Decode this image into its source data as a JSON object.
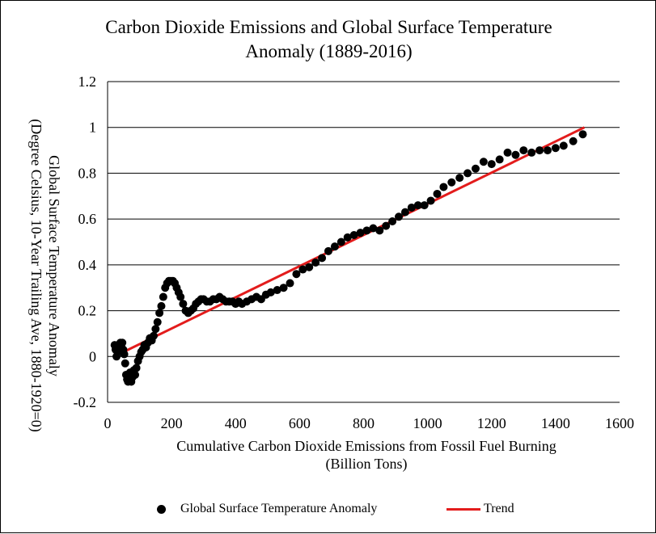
{
  "title_lines": [
    "Carbon Dioxide Emissions and Global Surface Temperature",
    "Anomaly (1889-2016)"
  ],
  "colors": {
    "points": "#000000",
    "trend": "#e31c1c",
    "grid": "#000000"
  },
  "chart_data": {
    "type": "scatter",
    "title": "Carbon Dioxide Emissions and Global Surface Temperature Anomaly (1889-2016)",
    "xlabel_lines": [
      "Cumulative Carbon Dioxide Emissions from Fossil Fuel Burning",
      "(Billion Tons)"
    ],
    "ylabel_lines": [
      "Global Surface Temperature Anomaly",
      "(Degree Celsius, 10-Year Trailing Ave, 1880-1920=0)"
    ],
    "xlim": [
      0,
      1600
    ],
    "ylim": [
      -0.2,
      1.2
    ],
    "xticks": [
      "0",
      "200",
      "400",
      "600",
      "800",
      "1000",
      "1200",
      "1400",
      "1600"
    ],
    "yticks": [
      "-0.2",
      "0",
      "0.2",
      "0.4",
      "0.6",
      "0.8",
      "1",
      "1.2"
    ],
    "grid": "horizontal major gridlines",
    "legend_position": "bottom",
    "series": [
      {
        "name": "Global Surface Temperature Anomaly",
        "kind": "scatter",
        "x": [
          22,
          25,
          28,
          31,
          34,
          37,
          40,
          43,
          46,
          49,
          52,
          55,
          58,
          61,
          64,
          67,
          70,
          74,
          78,
          82,
          86,
          90,
          95,
          100,
          105,
          110,
          115,
          120,
          126,
          132,
          138,
          144,
          150,
          156,
          162,
          168,
          174,
          180,
          186,
          192,
          198,
          204,
          210,
          216,
          222,
          228,
          236,
          244,
          252,
          260,
          268,
          276,
          284,
          292,
          300,
          310,
          320,
          330,
          340,
          350,
          360,
          370,
          380,
          390,
          400,
          410,
          420,
          435,
          450,
          465,
          480,
          495,
          510,
          530,
          550,
          570,
          590,
          610,
          630,
          650,
          670,
          690,
          710,
          730,
          750,
          770,
          790,
          810,
          830,
          850,
          870,
          890,
          910,
          930,
          950,
          970,
          990,
          1010,
          1030,
          1050,
          1075,
          1100,
          1125,
          1150,
          1175,
          1200,
          1225,
          1250,
          1275,
          1300,
          1325,
          1350,
          1375,
          1400,
          1425,
          1455,
          1485
        ],
        "y": [
          0.05,
          0.03,
          0.0,
          0.02,
          0.04,
          0.03,
          0.06,
          0.05,
          0.06,
          0.03,
          0.01,
          -0.03,
          -0.08,
          -0.1,
          -0.11,
          -0.09,
          -0.07,
          -0.11,
          -0.09,
          -0.06,
          -0.08,
          -0.05,
          -0.02,
          0.0,
          0.02,
          0.03,
          0.05,
          0.04,
          0.06,
          0.08,
          0.07,
          0.09,
          0.12,
          0.15,
          0.19,
          0.22,
          0.26,
          0.3,
          0.32,
          0.33,
          0.33,
          0.33,
          0.32,
          0.3,
          0.28,
          0.26,
          0.23,
          0.2,
          0.19,
          0.2,
          0.21,
          0.23,
          0.24,
          0.25,
          0.25,
          0.24,
          0.24,
          0.25,
          0.25,
          0.26,
          0.25,
          0.24,
          0.24,
          0.24,
          0.23,
          0.24,
          0.23,
          0.24,
          0.25,
          0.26,
          0.25,
          0.27,
          0.28,
          0.29,
          0.3,
          0.32,
          0.36,
          0.38,
          0.39,
          0.41,
          0.43,
          0.46,
          0.48,
          0.5,
          0.52,
          0.53,
          0.54,
          0.55,
          0.56,
          0.55,
          0.57,
          0.59,
          0.61,
          0.63,
          0.65,
          0.66,
          0.66,
          0.68,
          0.71,
          0.74,
          0.76,
          0.78,
          0.8,
          0.82,
          0.85,
          0.84,
          0.86,
          0.89,
          0.88,
          0.9,
          0.89,
          0.9,
          0.9,
          0.91,
          0.92,
          0.94,
          0.97
        ]
      },
      {
        "name": "Trend",
        "kind": "line",
        "x": [
          50,
          1490
        ],
        "y": [
          0.02,
          1.0
        ]
      }
    ]
  }
}
